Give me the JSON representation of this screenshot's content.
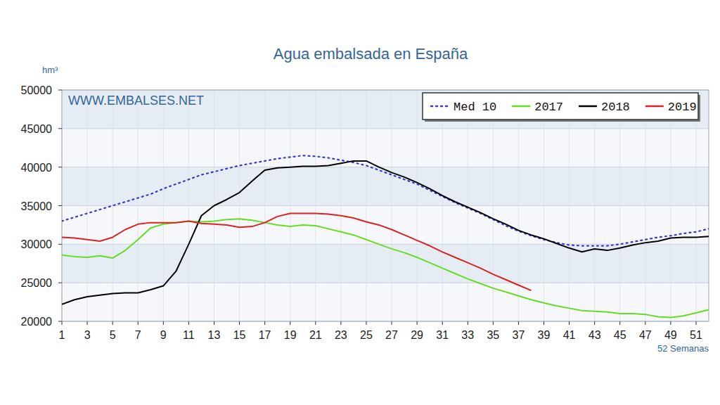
{
  "chart_data": {
    "type": "line",
    "title": "Agua embalsada en España",
    "y_label": "hm³",
    "x_label": "52 Semanas",
    "annotation": "WWW.EMBALSES.NET",
    "x": [
      1,
      2,
      3,
      4,
      5,
      6,
      7,
      8,
      9,
      10,
      11,
      12,
      13,
      14,
      15,
      16,
      17,
      18,
      19,
      20,
      21,
      22,
      23,
      24,
      25,
      26,
      27,
      28,
      29,
      30,
      31,
      32,
      33,
      34,
      35,
      36,
      37,
      38,
      39,
      40,
      41,
      42,
      43,
      44,
      45,
      46,
      47,
      48,
      49,
      50,
      51,
      52
    ],
    "xlim": [
      1,
      52
    ],
    "xticks": [
      1,
      3,
      5,
      7,
      9,
      11,
      13,
      15,
      17,
      19,
      21,
      23,
      25,
      27,
      29,
      31,
      33,
      35,
      37,
      39,
      41,
      43,
      45,
      47,
      49,
      51
    ],
    "ylim": [
      20000,
      50000
    ],
    "yticks": [
      20000,
      25000,
      30000,
      35000,
      40000,
      45000,
      50000
    ],
    "grid": true,
    "legend": "top-right",
    "series": [
      {
        "name": "Med 10",
        "color": "#3a3acc",
        "line_style": "dotted",
        "values": [
          33000,
          33500,
          34000,
          34500,
          35000,
          35500,
          36000,
          36500,
          37200,
          37800,
          38400,
          39000,
          39400,
          39800,
          40200,
          40500,
          40800,
          41100,
          41300,
          41500,
          41400,
          41200,
          40900,
          40600,
          40200,
          39600,
          39000,
          38400,
          37800,
          37000,
          36200,
          35400,
          34700,
          34000,
          33200,
          32400,
          31700,
          31100,
          30600,
          30200,
          29900,
          29800,
          29800,
          29800,
          30000,
          30300,
          30600,
          30900,
          31100,
          31400,
          31600,
          32000
        ]
      },
      {
        "name": "2017",
        "color": "#66dd22",
        "line_style": "solid",
        "values": [
          28600,
          28400,
          28300,
          28500,
          28200,
          29200,
          30600,
          32100,
          32600,
          32800,
          33000,
          32900,
          33000,
          33200,
          33300,
          33100,
          32800,
          32500,
          32300,
          32500,
          32400,
          32000,
          31600,
          31200,
          30600,
          30000,
          29400,
          28900,
          28300,
          27600,
          26900,
          26200,
          25500,
          24900,
          24300,
          23800,
          23300,
          22800,
          22400,
          22000,
          21700,
          21400,
          21300,
          21200,
          21000,
          21000,
          20900,
          20600,
          20500,
          20700,
          21100,
          21500
        ]
      },
      {
        "name": "2018",
        "color": "#000000",
        "line_style": "solid",
        "values": [
          22200,
          22800,
          23200,
          23400,
          23600,
          23700,
          23700,
          24100,
          24600,
          26500,
          30000,
          33700,
          35000,
          35800,
          36700,
          38200,
          39600,
          39900,
          40000,
          40100,
          40100,
          40200,
          40500,
          40800,
          40800,
          40000,
          39300,
          38700,
          38000,
          37200,
          36300,
          35500,
          34800,
          34100,
          33300,
          32600,
          31800,
          31200,
          30700,
          30100,
          29500,
          29000,
          29400,
          29200,
          29500,
          29900,
          30200,
          30400,
          30800,
          30900,
          30900,
          31000
        ]
      },
      {
        "name": "2019",
        "color": "#dd2222",
        "line_style": "solid",
        "values": [
          30900,
          30800,
          30600,
          30400,
          30900,
          31900,
          32600,
          32800,
          32800,
          32800,
          33000,
          32700,
          32600,
          32500,
          32200,
          32300,
          32800,
          33600,
          34000,
          34000,
          34000,
          33900,
          33700,
          33400,
          32900,
          32500,
          31900,
          31200,
          30500,
          29800,
          29000,
          28300,
          27600,
          26900,
          26100,
          25400,
          24700,
          24000,
          null,
          null,
          null,
          null,
          null,
          null,
          null,
          null,
          null,
          null,
          null,
          null,
          null,
          null
        ]
      }
    ]
  }
}
